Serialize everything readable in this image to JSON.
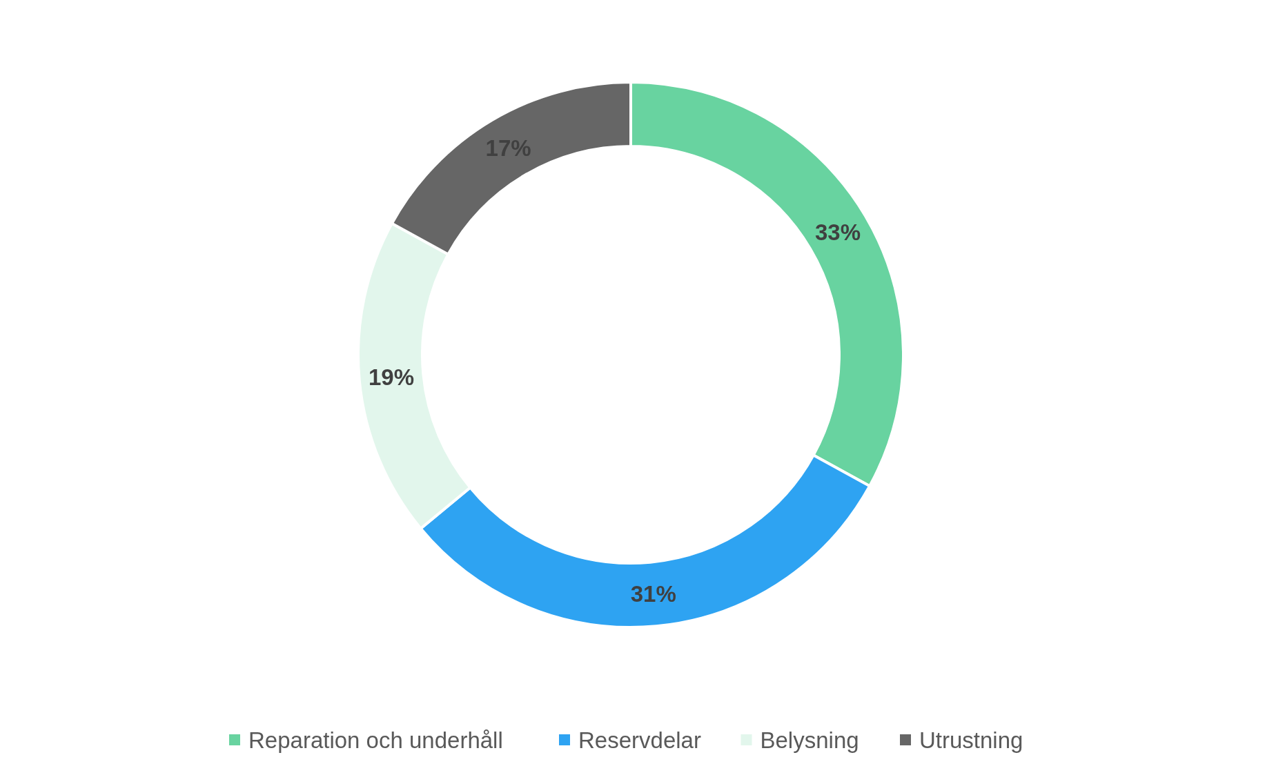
{
  "chart_data": {
    "type": "donut",
    "categories": [
      "Reparation och underhåll",
      "Reservdelar",
      "Belysning",
      "Utrustning"
    ],
    "values": [
      33,
      31,
      19,
      17
    ],
    "colors": [
      "#68d3a0",
      "#2ea3f2",
      "#e2f6ec",
      "#666666"
    ],
    "value_labels": [
      "33%",
      "31%",
      "19%",
      "17%"
    ],
    "legend": "bottom"
  }
}
